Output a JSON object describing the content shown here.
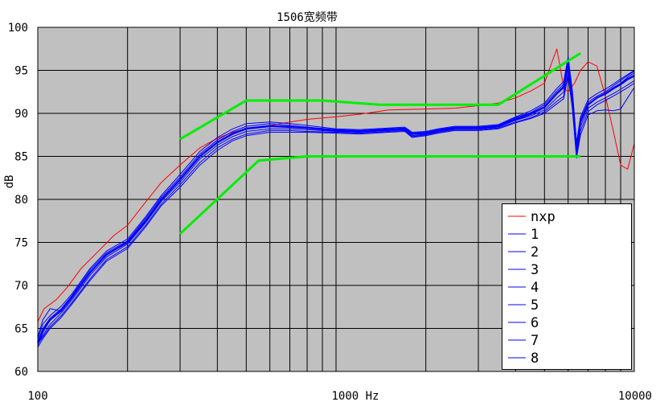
{
  "chart_data": {
    "type": "line",
    "title": "1506宽频带",
    "xlabel": "",
    "ylabel": "dB",
    "x_scale": "log",
    "xlim": [
      100,
      10000
    ],
    "ylim": [
      60,
      100
    ],
    "grid": true,
    "legend_position": "bottom-right",
    "background_color": "#c0c0c0",
    "x_tick_labels": [
      "100",
      "1000 Hz",
      "10000"
    ],
    "y_ticks": [
      60,
      65,
      70,
      75,
      80,
      85,
      90,
      95,
      100
    ],
    "series": [
      {
        "name": "nxp",
        "color": "#ff0000",
        "width": 1,
        "x": [
          100,
          105,
          115,
          125,
          140,
          160,
          180,
          200,
          230,
          260,
          300,
          350,
          400,
          450,
          500,
          600,
          700,
          800,
          1000,
          1200,
          1500,
          2000,
          2500,
          3000,
          3500,
          4000,
          4500,
          5000,
          5300,
          5500,
          5800,
          6000,
          6300,
          6600,
          7000,
          7500,
          8000,
          8500,
          9000,
          9500,
          10000
        ],
        "y": [
          65.8,
          67.3,
          68.3,
          69.7,
          72.0,
          74.0,
          75.8,
          77.0,
          79.7,
          82.0,
          84.0,
          86.0,
          87.1,
          87.8,
          88.2,
          88.6,
          89.0,
          89.3,
          89.6,
          89.9,
          90.4,
          90.5,
          90.6,
          90.9,
          91.2,
          91.8,
          92.6,
          93.5,
          96.0,
          97.5,
          93.0,
          92.5,
          93.5,
          95.0,
          96.0,
          95.5,
          92.0,
          88.0,
          84.0,
          83.5,
          86.5
        ]
      },
      {
        "name": "1",
        "color": "#0000ff",
        "width": 1,
        "x": [
          100,
          104,
          110,
          120,
          130,
          150,
          170,
          200,
          230,
          260,
          300,
          350,
          400,
          450,
          500,
          600,
          700,
          800,
          1000,
          1200,
          1500,
          1700,
          1800,
          2000,
          2200,
          2500,
          3000,
          3500,
          4000,
          4500,
          5000,
          5500,
          5800,
          6000,
          6200,
          6400,
          6600,
          7000,
          7500,
          8000,
          8500,
          9000,
          9500,
          10000
        ],
        "y": [
          63.0,
          64.5,
          66.0,
          67.0,
          68.5,
          71.5,
          73.5,
          75.0,
          77.5,
          80.0,
          82.3,
          85.0,
          86.6,
          87.6,
          88.2,
          88.5,
          88.4,
          88.3,
          88.0,
          87.9,
          88.1,
          88.2,
          87.6,
          87.7,
          88.0,
          88.3,
          88.3,
          88.5,
          89.3,
          89.9,
          90.7,
          92.3,
          93.0,
          96.0,
          92.0,
          86.0,
          89.0,
          91.0,
          91.8,
          92.3,
          93.0,
          93.5,
          94.2,
          94.7
        ]
      },
      {
        "name": "2",
        "color": "#0000ff",
        "width": 1,
        "x": [
          100,
          104,
          110,
          120,
          130,
          150,
          170,
          200,
          230,
          260,
          300,
          350,
          400,
          450,
          500,
          600,
          700,
          800,
          1000,
          1200,
          1500,
          1700,
          1800,
          2000,
          2200,
          2500,
          3000,
          3500,
          4000,
          4500,
          5000,
          5500,
          5800,
          6000,
          6200,
          6400,
          6600,
          7000,
          7500,
          8000,
          8500,
          9000,
          9500,
          10000
        ],
        "y": [
          63.3,
          64.2,
          65.5,
          66.8,
          68.3,
          71.2,
          73.3,
          74.8,
          77.3,
          79.8,
          82.0,
          84.7,
          86.3,
          87.3,
          87.9,
          88.2,
          88.2,
          88.1,
          87.9,
          87.8,
          88.0,
          88.1,
          87.4,
          87.6,
          87.9,
          88.2,
          88.2,
          88.4,
          89.2,
          89.7,
          90.4,
          91.8,
          92.5,
          95.5,
          91.3,
          85.5,
          88.5,
          90.6,
          91.3,
          91.8,
          92.3,
          92.8,
          93.3,
          93.8
        ]
      },
      {
        "name": "3",
        "color": "#0000ff",
        "width": 1,
        "x": [
          100,
          104,
          110,
          120,
          130,
          150,
          170,
          200,
          230,
          260,
          300,
          350,
          400,
          450,
          500,
          600,
          700,
          800,
          1000,
          1200,
          1500,
          1700,
          1800,
          2000,
          2200,
          2500,
          3000,
          3500,
          4000,
          4500,
          5000,
          5500,
          5800,
          6000,
          6200,
          6400,
          6600,
          7000,
          7500,
          8000,
          8500,
          9000,
          9500,
          10000
        ],
        "y": [
          63.5,
          65.0,
          66.2,
          67.3,
          68.8,
          71.8,
          73.8,
          75.2,
          77.8,
          80.3,
          82.6,
          85.3,
          86.9,
          87.9,
          88.5,
          88.8,
          88.6,
          88.4,
          88.1,
          88.0,
          88.2,
          88.3,
          87.7,
          87.8,
          88.1,
          88.4,
          88.4,
          88.6,
          89.5,
          90.1,
          91.0,
          92.6,
          93.4,
          96.3,
          92.3,
          86.3,
          89.3,
          91.3,
          92.0,
          92.5,
          93.2,
          93.8,
          94.4,
          94.9
        ]
      },
      {
        "name": "4",
        "color": "#0000ff",
        "width": 1,
        "x": [
          100,
          104,
          110,
          120,
          130,
          150,
          170,
          200,
          230,
          260,
          300,
          350,
          400,
          450,
          500,
          600,
          700,
          800,
          1000,
          1200,
          1500,
          1700,
          1800,
          2000,
          2200,
          2500,
          3000,
          3500,
          4000,
          4500,
          5000,
          5500,
          5800,
          6000,
          6200,
          6400,
          6600,
          7000,
          7500,
          8000,
          8500,
          9000,
          9500,
          10000
        ],
        "y": [
          63.2,
          64.0,
          65.2,
          66.5,
          68.0,
          70.8,
          73.0,
          74.5,
          77.0,
          79.5,
          81.7,
          84.3,
          86.0,
          87.0,
          87.6,
          88.0,
          88.0,
          87.9,
          87.8,
          87.7,
          87.9,
          88.0,
          87.3,
          87.5,
          87.8,
          88.1,
          88.1,
          88.3,
          89.0,
          89.5,
          90.2,
          91.4,
          92.0,
          94.8,
          90.8,
          85.0,
          88.0,
          90.2,
          91.0,
          91.5,
          92.0,
          92.5,
          93.0,
          93.5
        ]
      },
      {
        "name": "5",
        "color": "#0000ff",
        "width": 1,
        "x": [
          100,
          104,
          110,
          120,
          130,
          150,
          170,
          200,
          230,
          260,
          300,
          350,
          400,
          450,
          500,
          600,
          700,
          800,
          1000,
          1200,
          1500,
          1700,
          1800,
          2000,
          2200,
          2500,
          3000,
          3500,
          4000,
          4500,
          5000,
          5500,
          5800,
          6000,
          6200,
          6400,
          6600,
          7000,
          7500,
          8000,
          8500,
          9000,
          9500,
          10000
        ],
        "y": [
          63.8,
          65.5,
          66.5,
          67.6,
          69.0,
          72.0,
          74.0,
          75.4,
          78.0,
          80.5,
          82.9,
          85.6,
          87.2,
          88.2,
          88.8,
          89.0,
          88.8,
          88.6,
          88.2,
          88.1,
          88.3,
          88.4,
          87.8,
          87.9,
          88.2,
          88.5,
          88.5,
          88.7,
          89.6,
          90.3,
          91.2,
          92.9,
          93.7,
          96.6,
          92.6,
          86.6,
          89.6,
          91.6,
          92.3,
          92.8,
          93.4,
          94.0,
          94.5,
          95.0
        ]
      },
      {
        "name": "6",
        "color": "#0000ff",
        "width": 1,
        "x": [
          100,
          104,
          110,
          120,
          130,
          150,
          170,
          200,
          230,
          260,
          300,
          350,
          400,
          450,
          500,
          600,
          700,
          800,
          1000,
          1200,
          1500,
          1700,
          1800,
          2000,
          2200,
          2500,
          3000,
          3500,
          4000,
          4500,
          5000,
          5500,
          5800,
          6000,
          6200,
          6400,
          6600,
          7000,
          7500,
          8000,
          8500,
          9000,
          9500,
          10000
        ],
        "y": [
          62.8,
          63.8,
          65.0,
          66.3,
          67.8,
          70.6,
          72.8,
          74.3,
          76.8,
          79.3,
          81.4,
          84.0,
          85.7,
          86.8,
          87.4,
          87.8,
          87.8,
          87.8,
          87.7,
          87.6,
          87.8,
          87.9,
          87.2,
          87.4,
          87.7,
          88.0,
          88.0,
          88.2,
          88.9,
          89.4,
          90.0,
          91.1,
          91.7,
          94.4,
          90.5,
          84.8,
          87.5,
          89.8,
          90.3,
          90.4,
          90.3,
          90.5,
          91.8,
          93.0
        ]
      },
      {
        "name": "7",
        "color": "#0000ff",
        "width": 1,
        "x": [
          100,
          104,
          110,
          120,
          130,
          150,
          170,
          200,
          230,
          260,
          300,
          350,
          400,
          450,
          500,
          600,
          700,
          800,
          1000,
          1200,
          1500,
          1700,
          1800,
          2000,
          2200,
          2500,
          3000,
          3500,
          4000,
          4500,
          5000,
          5500,
          5800,
          6000,
          6200,
          6400,
          6600,
          7000,
          7500,
          8000,
          8500,
          9000,
          9500,
          10000
        ],
        "y": [
          64.0,
          66.0,
          67.3,
          67.0,
          68.6,
          71.6,
          73.6,
          75.1,
          77.6,
          80.1,
          82.4,
          85.1,
          86.7,
          87.7,
          88.3,
          88.6,
          88.5,
          88.3,
          88.0,
          87.9,
          88.1,
          88.2,
          87.6,
          87.7,
          88.0,
          88.3,
          88.3,
          88.5,
          89.4,
          90.0,
          90.8,
          92.4,
          93.2,
          96.1,
          92.1,
          86.1,
          89.1,
          91.1,
          91.8,
          92.2,
          92.8,
          93.3,
          93.9,
          94.3
        ]
      },
      {
        "name": "8",
        "color": "#0000ff",
        "width": 2,
        "x": [
          100,
          104,
          110,
          120,
          130,
          150,
          170,
          200,
          230,
          260,
          300,
          350,
          400,
          450,
          500,
          600,
          700,
          800,
          1000,
          1200,
          1500,
          1700,
          1800,
          2000,
          2200,
          2500,
          3000,
          3500,
          4000,
          4500,
          5000,
          5500,
          5800,
          6000,
          6200,
          6400,
          6600,
          7000,
          7500,
          8000,
          8500,
          9000,
          9500,
          10000
        ],
        "y": [
          63.4,
          64.8,
          66.0,
          67.1,
          68.6,
          71.5,
          73.6,
          75.0,
          77.5,
          80.0,
          82.3,
          85.0,
          86.6,
          87.6,
          88.2,
          88.5,
          88.4,
          88.3,
          88.0,
          87.9,
          88.1,
          88.2,
          87.6,
          87.7,
          88.0,
          88.3,
          88.3,
          88.5,
          89.3,
          89.9,
          90.7,
          92.3,
          93.0,
          95.8,
          92.0,
          86.0,
          89.0,
          91.0,
          91.8,
          92.3,
          92.9,
          93.4,
          94.0,
          94.4
        ]
      },
      {
        "color": "#00ee00",
        "width": 3,
        "x": [
          300,
          500,
          900,
          1400,
          2000,
          3500,
          6600
        ],
        "y": [
          87.0,
          91.5,
          91.5,
          91.0,
          91.0,
          91.0,
          97.0
        ]
      },
      {
        "color": "#00ee00",
        "width": 3,
        "x": [
          300,
          550,
          800,
          1200,
          2000,
          4000,
          6600
        ],
        "y": [
          76.0,
          84.5,
          85.0,
          85.0,
          85.0,
          85.0,
          85.0
        ]
      }
    ]
  }
}
